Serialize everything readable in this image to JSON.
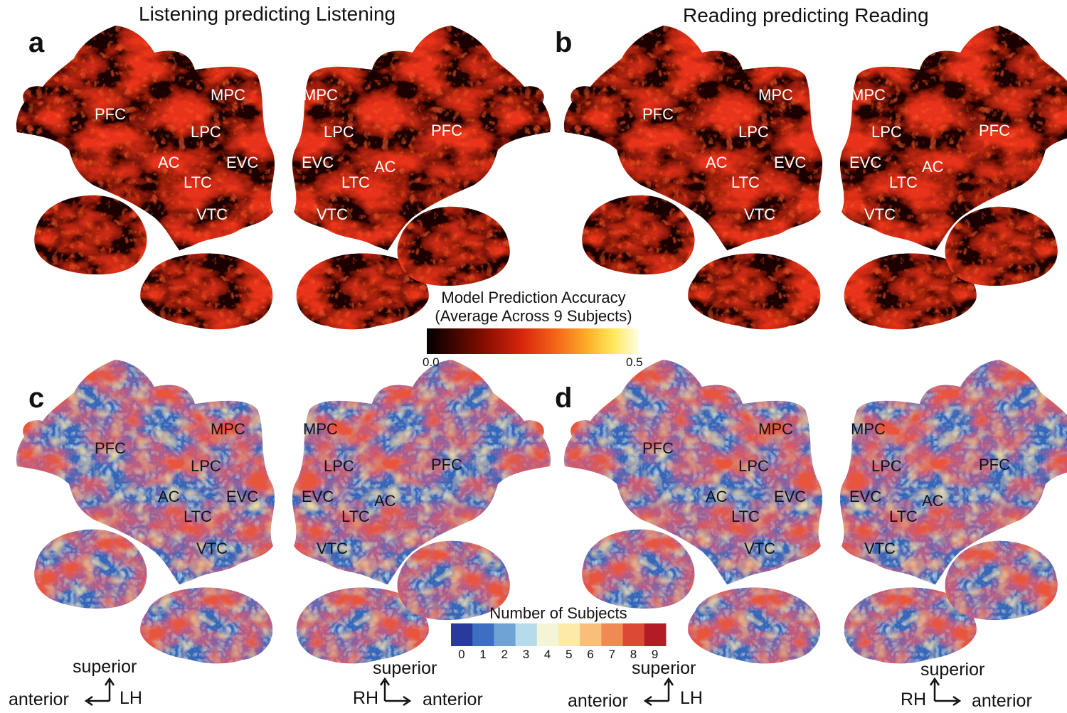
{
  "panels": [
    {
      "id": "a",
      "letter": "a",
      "title": "Listening predicting Listening",
      "style": "red"
    },
    {
      "id": "b",
      "letter": "b",
      "title": "Reading predicting Reading",
      "style": "red"
    },
    {
      "id": "c",
      "letter": "c",
      "title": "",
      "style": "blue"
    },
    {
      "id": "d",
      "letter": "d",
      "title": "",
      "style": "blue"
    }
  ],
  "roi_labels": {
    "left": [
      "PFC",
      "MPC",
      "LPC",
      "AC",
      "EVC",
      "LTC",
      "VTC"
    ],
    "right": [
      "MPC",
      "LPC",
      "PFC",
      "EVC",
      "AC",
      "LTC",
      "VTC"
    ]
  },
  "colorbar_accuracy": {
    "title_line1": "Model Prediction Accuracy",
    "title_line2": "(Average Across 9 Subjects)",
    "min_label": "0.0",
    "max_label": "0.5",
    "colors": [
      "#000000",
      "#3a0500",
      "#7a0a00",
      "#c41a08",
      "#ee3a14",
      "#f8781c",
      "#fdb830",
      "#ffef66",
      "#fffde0"
    ]
  },
  "colorbar_subjects": {
    "title": "Number of Subjects",
    "ticks": [
      "0",
      "1",
      "2",
      "3",
      "4",
      "5",
      "6",
      "7",
      "8",
      "9"
    ],
    "colors": [
      "#2a3a9c",
      "#3c6fbf",
      "#6fa3d6",
      "#b6dbec",
      "#f4f5d6",
      "#fde9a8",
      "#f9be7a",
      "#ef8a55",
      "#dc4a35",
      "#b31c25"
    ]
  },
  "orientation": {
    "superior": "superior",
    "anterior": "anterior",
    "lh": "LH",
    "rh": "RH"
  }
}
